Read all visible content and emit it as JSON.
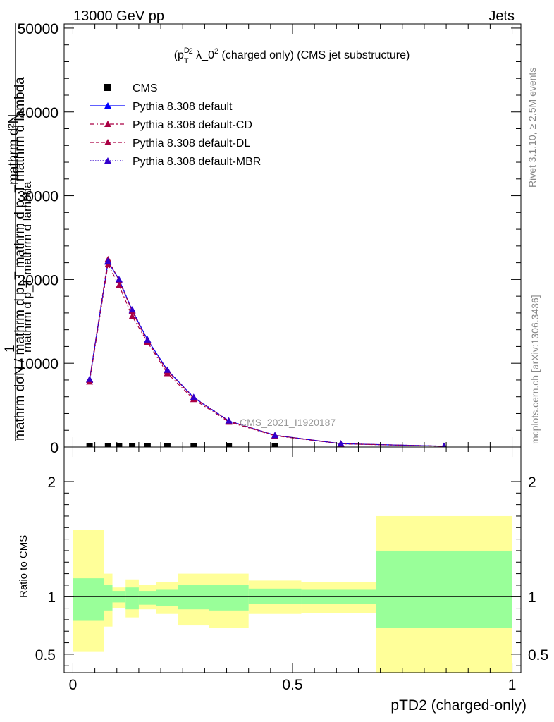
{
  "header": {
    "left": "13000 GeV pp",
    "right": "Jets"
  },
  "title": "(p_T^D)^2 λ_0^2 (charged only) (CMS jet substructure)",
  "side_labels": {
    "rivet": "Rivet 3.1.10, ≥ 2.5M events",
    "mcplots": "mcplots.cern.ch [arXiv:1306.3436]"
  },
  "watermark": "CMS_2021_I1920187",
  "y_axis_label_main": "1 / mathrm dN / mathrm d p_T mathrm d lambda — mathrm d²N / mathrm d p_T mathrm d p_T mathrm d lambda",
  "colors": {
    "default": "#0000ff",
    "cd": "#aa0044",
    "dl": "#aa0044",
    "mbr": "#3300cc",
    "band_stat": "#99ff99",
    "band_total": "#ffff99",
    "data": "#000000"
  },
  "chart_data": [
    {
      "type": "line",
      "panel": "main",
      "xlabel": "",
      "ylabel": "mathrm d²N / mathrm d p_T mathrm d p_T mathrm d lambda",
      "xlim": [
        -0.02,
        1.02
      ],
      "ylim": [
        0,
        50500
      ],
      "y_ticks": [
        0,
        10000,
        20000,
        30000,
        40000,
        50000
      ],
      "y_tick_labels": [
        "0",
        "10000",
        "20000",
        "30000",
        "40000",
        "50000"
      ],
      "legend": {
        "placement": "top-left",
        "entries": [
          "CMS",
          "Pythia 8.308 default",
          "Pythia 8.308 default-CD",
          "Pythia 8.308 default-DL",
          "Pythia 8.308 default-MBR"
        ]
      },
      "data": {
        "name": "CMS",
        "x": [
          0.038,
          0.08,
          0.105,
          0.135,
          0.17,
          0.215,
          0.275,
          0.355,
          0.46
        ],
        "y": [
          0,
          0,
          0,
          0,
          0,
          0,
          0,
          0,
          0
        ]
      },
      "series": [
        {
          "name": "Pythia 8.308 default",
          "style": "solid",
          "x": [
            0.038,
            0.08,
            0.105,
            0.135,
            0.17,
            0.215,
            0.275,
            0.355,
            0.46,
            0.61,
            0.845
          ],
          "y": [
            8000,
            22100,
            20000,
            16300,
            12800,
            9200,
            5900,
            3100,
            1400,
            400,
            100
          ]
        },
        {
          "name": "Pythia 8.308 default-CD",
          "style": "dashdot",
          "x": [
            0.038,
            0.08,
            0.105,
            0.135,
            0.17,
            0.215,
            0.275,
            0.355,
            0.46,
            0.61,
            0.845
          ],
          "y": [
            7800,
            21800,
            19300,
            15600,
            12500,
            8800,
            5700,
            3000,
            1350,
            380,
            90
          ]
        },
        {
          "name": "Pythia 8.308 default-DL",
          "style": "dashed",
          "x": [
            0.038,
            0.08,
            0.105,
            0.135,
            0.17,
            0.215,
            0.275,
            0.355,
            0.46,
            0.61,
            0.845
          ],
          "y": [
            8050,
            22400,
            19900,
            16200,
            12600,
            9100,
            5900,
            3100,
            1400,
            400,
            100
          ]
        },
        {
          "name": "Pythia 8.308 default-MBR",
          "style": "dotted",
          "x": [
            0.038,
            0.08,
            0.105,
            0.135,
            0.17,
            0.215,
            0.275,
            0.355,
            0.46,
            0.61,
            0.845
          ],
          "y": [
            8100,
            22200,
            20000,
            16400,
            12800,
            9200,
            5950,
            3150,
            1400,
            400,
            100
          ]
        }
      ]
    },
    {
      "type": "area",
      "panel": "ratio",
      "xlabel": "pTD2 (charged-only)",
      "ylabel": "Ratio to CMS",
      "xlim": [
        -0.02,
        1.02
      ],
      "ylim": [
        0.34,
        2.3
      ],
      "y_ticks": [
        0.5,
        1,
        2
      ],
      "y_tick_labels": [
        "0.5",
        "1",
        "2"
      ],
      "x_ticks": [
        0,
        0.5,
        1
      ],
      "x_tick_labels": [
        "0",
        "0.5",
        "1"
      ],
      "reference_line": 1,
      "bins": [
        {
          "lo": 0.0,
          "hi": 0.07,
          "stat": [
            0.79,
            1.16
          ],
          "total": [
            0.52,
            1.58
          ]
        },
        {
          "lo": 0.07,
          "hi": 0.09,
          "stat": [
            0.88,
            1.1
          ],
          "total": [
            0.74,
            1.2
          ]
        },
        {
          "lo": 0.09,
          "hi": 0.12,
          "stat": [
            0.95,
            1.05
          ],
          "total": [
            0.9,
            1.08
          ]
        },
        {
          "lo": 0.12,
          "hi": 0.15,
          "stat": [
            0.89,
            1.08
          ],
          "total": [
            0.82,
            1.15
          ]
        },
        {
          "lo": 0.15,
          "hi": 0.19,
          "stat": [
            0.93,
            1.05
          ],
          "total": [
            0.89,
            1.1
          ]
        },
        {
          "lo": 0.19,
          "hi": 0.24,
          "stat": [
            0.92,
            1.06
          ],
          "total": [
            0.85,
            1.13
          ]
        },
        {
          "lo": 0.24,
          "hi": 0.31,
          "stat": [
            0.89,
            1.1
          ],
          "total": [
            0.75,
            1.2
          ]
        },
        {
          "lo": 0.31,
          "hi": 0.4,
          "stat": [
            0.88,
            1.1
          ],
          "total": [
            0.73,
            1.2
          ]
        },
        {
          "lo": 0.4,
          "hi": 0.52,
          "stat": [
            0.94,
            1.07
          ],
          "total": [
            0.85,
            1.14
          ]
        },
        {
          "lo": 0.52,
          "hi": 0.69,
          "stat": [
            0.94,
            1.06
          ],
          "total": [
            0.86,
            1.13
          ]
        },
        {
          "lo": 0.69,
          "hi": 1.0,
          "stat": [
            0.73,
            1.4
          ],
          "total": [
            0.34,
            1.7
          ]
        }
      ]
    }
  ]
}
